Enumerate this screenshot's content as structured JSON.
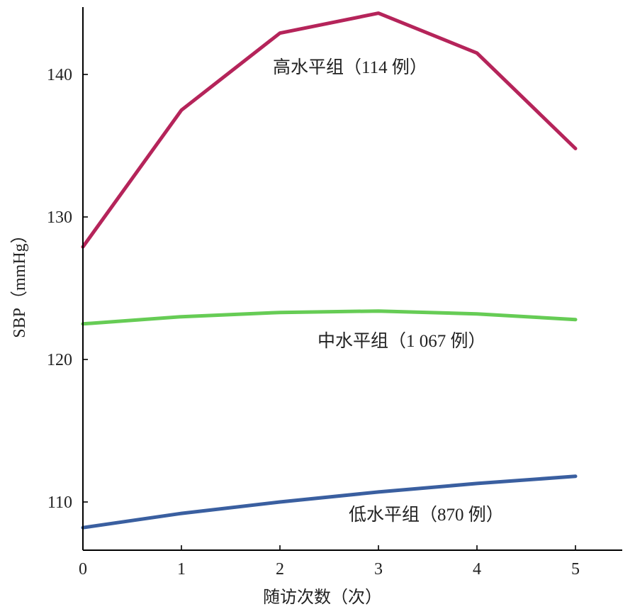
{
  "chart_data": {
    "type": "line",
    "title": "",
    "xlabel": "随访次数（次）",
    "ylabel": "SBP（mmHg）",
    "x": [
      0,
      1,
      2,
      3,
      4,
      5
    ],
    "xticks": [
      "0",
      "1",
      "2",
      "3",
      "4",
      "5"
    ],
    "yticks": [
      "110",
      "120",
      "130",
      "140"
    ],
    "xlim": [
      0,
      5.5
    ],
    "ylim": [
      106.5,
      144.7
    ],
    "grid": false,
    "legend": "none",
    "series": [
      {
        "name": "高水平组（114 例）",
        "color": "#b5245a",
        "values": [
          127.9,
          137.5,
          142.9,
          144.3,
          141.5,
          134.8
        ]
      },
      {
        "name": "中水平组（1 067 例）",
        "color": "#66cc55",
        "values": [
          122.5,
          123.0,
          123.3,
          123.4,
          123.2,
          122.8
        ]
      },
      {
        "name": "低水平组（870 例）",
        "color": "#3a5fa0",
        "values": [
          108.2,
          109.2,
          110.0,
          110.7,
          111.3,
          111.8
        ]
      }
    ]
  }
}
